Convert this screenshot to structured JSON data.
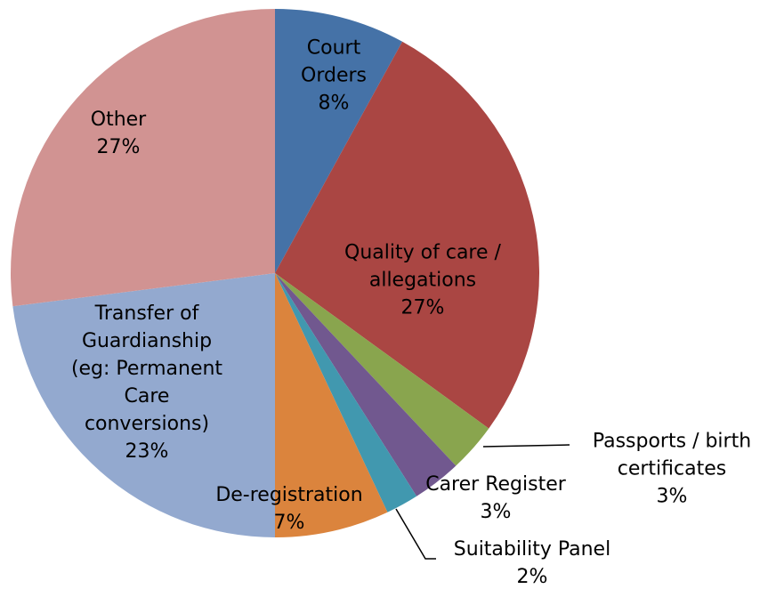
{
  "chart_data": {
    "type": "pie",
    "categories": [
      "Court Orders",
      "Quality of care / allegations",
      "Passports / birth certificates",
      "Carer Register",
      "Suitability Panel",
      "De-registration",
      "Transfer of Guardianship (eg: Permanent Care conversions)",
      "Other"
    ],
    "values": [
      8,
      27,
      3,
      3,
      2,
      7,
      23,
      27
    ],
    "value_labels": [
      "8%",
      "27%",
      "3%",
      "3%",
      "2%",
      "7%",
      "23%",
      "27%"
    ],
    "colors": [
      "#4572a7",
      "#aa4643",
      "#89a54e",
      "#71588f",
      "#4198af",
      "#db843d",
      "#93a9cf",
      "#d19392"
    ]
  }
}
